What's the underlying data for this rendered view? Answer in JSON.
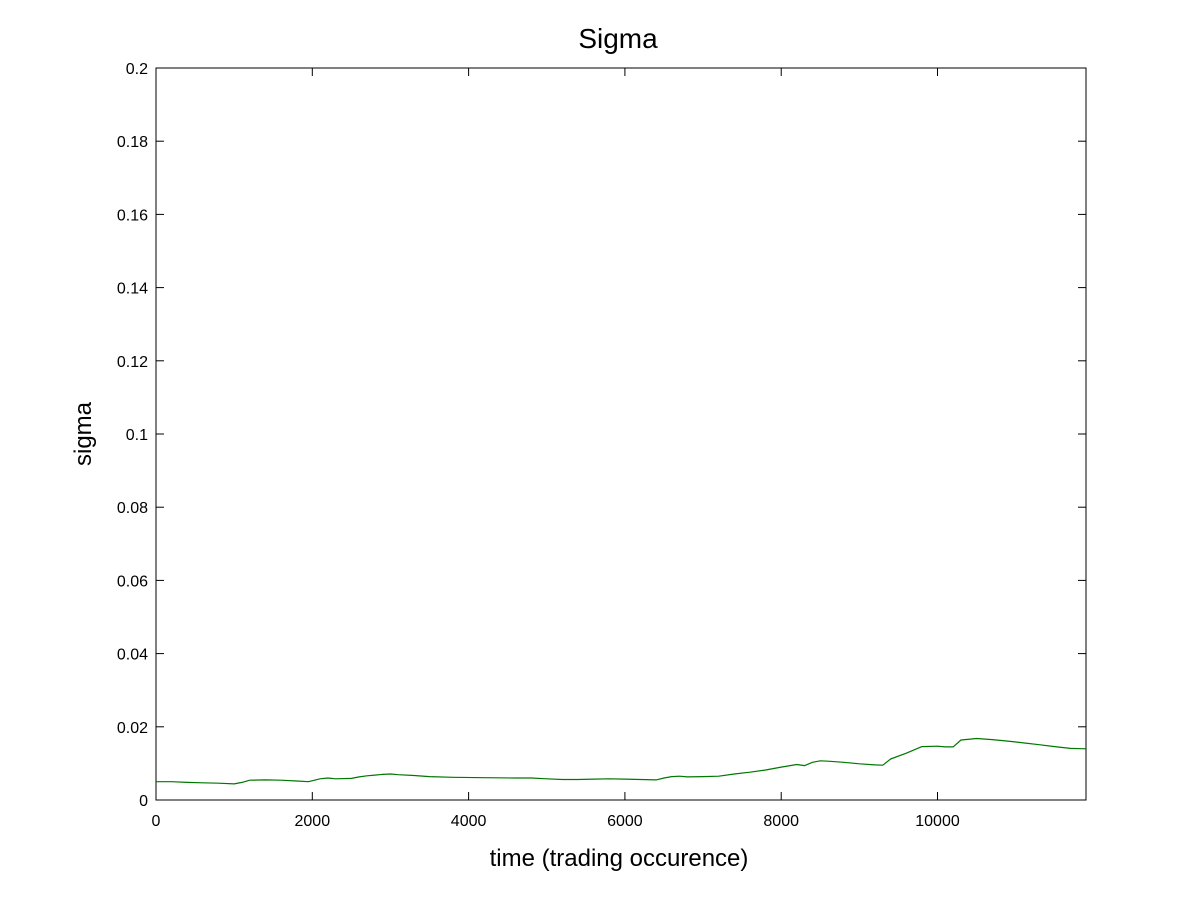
{
  "chart_data": {
    "type": "line",
    "title": "Sigma",
    "xlabel": "time (trading occurence)",
    "ylabel": "sigma",
    "xlim": [
      0,
      11900
    ],
    "ylim": [
      0,
      0.2
    ],
    "xticks": [
      0,
      2000,
      4000,
      6000,
      8000,
      10000
    ],
    "yticks": [
      0,
      0.02,
      0.04,
      0.06,
      0.08,
      0.1,
      0.12,
      0.14,
      0.16,
      0.18,
      0.2
    ],
    "xtick_labels": [
      "0",
      "2000",
      "4000",
      "6000",
      "8000",
      "10000"
    ],
    "ytick_labels": [
      "0",
      "0.02",
      "0.04",
      "0.06",
      "0.08",
      "0.1",
      "0.12",
      "0.14",
      "0.16",
      "0.18",
      "0.2"
    ],
    "grid": false,
    "colors": {
      "line": "#007700",
      "axes": "#000000",
      "background": "#ffffff"
    },
    "series": [
      {
        "x": [
          0,
          200,
          400,
          600,
          800,
          1000,
          1100,
          1200,
          1400,
          1600,
          1800,
          1950,
          2100,
          2200,
          2300,
          2500,
          2600,
          2700,
          2800,
          2900,
          3000,
          3100,
          3300,
          3500,
          3800,
          4200,
          4600,
          4800,
          5000,
          5200,
          5400,
          5600,
          5800,
          6000,
          6200,
          6400,
          6500,
          6600,
          6700,
          6800,
          7000,
          7200,
          7400,
          7600,
          7800,
          8000,
          8200,
          8300,
          8400,
          8500,
          8600,
          8800,
          9000,
          9200,
          9300,
          9400,
          9600,
          9800,
          10000,
          10100,
          10200,
          10300,
          10500,
          10700,
          10900,
          11100,
          11300,
          11500,
          11700,
          11900
        ],
        "y": [
          0.005,
          0.005,
          0.0048,
          0.0047,
          0.0046,
          0.0044,
          0.0048,
          0.0054,
          0.0055,
          0.0054,
          0.0052,
          0.005,
          0.0058,
          0.006,
          0.0058,
          0.0059,
          0.0063,
          0.0066,
          0.0068,
          0.007,
          0.0071,
          0.0069,
          0.0067,
          0.0064,
          0.0062,
          0.0061,
          0.006,
          0.006,
          0.0058,
          0.0056,
          0.0056,
          0.0057,
          0.0058,
          0.0057,
          0.0056,
          0.0055,
          0.006,
          0.0064,
          0.0065,
          0.0063,
          0.0064,
          0.0065,
          0.0071,
          0.0076,
          0.0082,
          0.009,
          0.0097,
          0.0094,
          0.0103,
          0.0107,
          0.0106,
          0.0103,
          0.0099,
          0.0096,
          0.0095,
          0.0112,
          0.0128,
          0.0146,
          0.0147,
          0.0145,
          0.0145,
          0.0164,
          0.0168,
          0.0165,
          0.0161,
          0.0156,
          0.0151,
          0.0146,
          0.0141,
          0.014
        ]
      }
    ]
  }
}
